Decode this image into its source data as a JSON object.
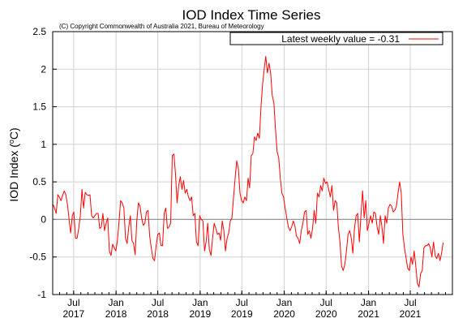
{
  "chart_data": {
    "type": "line",
    "title": "IOD Index Time Series",
    "subtitle": "(C) Copyright Commonwealth of Australia 2021, Bureau of Meteorology",
    "ylabel_main": "IOD Index (",
    "ylabel_sup": "o",
    "ylabel_end": "C)",
    "ylim": [
      -1,
      2.5
    ],
    "yticks": [
      "-1",
      "-0.5",
      "0",
      "0.5",
      "1",
      "1.5",
      "2",
      "2.5"
    ],
    "ytick_values": [
      -1,
      -0.5,
      0,
      0.5,
      1,
      1.5,
      2,
      2.5
    ],
    "xlim": [
      "2017-04-01",
      "2021-12-31"
    ],
    "xticks": [
      {
        "date": "2017-07-01",
        "line1": "Jul",
        "line2": "2017"
      },
      {
        "date": "2018-01-01",
        "line1": "Jan",
        "line2": "2018"
      },
      {
        "date": "2018-07-01",
        "line1": "Jul",
        "line2": "2018"
      },
      {
        "date": "2019-01-01",
        "line1": "Jan",
        "line2": "2019"
      },
      {
        "date": "2019-07-01",
        "line1": "Jul",
        "line2": "2019"
      },
      {
        "date": "2020-01-01",
        "line1": "Jan",
        "line2": "2020"
      },
      {
        "date": "2020-07-01",
        "line1": "Jul",
        "line2": "2020"
      },
      {
        "date": "2021-01-01",
        "line1": "Jan",
        "line2": "2021"
      },
      {
        "date": "2021-07-01",
        "line1": "Jul",
        "line2": "2021"
      }
    ],
    "grid": true,
    "zero_line": true,
    "legend_position": "top-right",
    "legend_label": "Latest weekly value = -0.31",
    "series": [
      {
        "color": "#ff0000",
        "points": [
          [
            "2017-04-02",
            0.2
          ],
          [
            "2017-04-09",
            0.15
          ],
          [
            "2017-04-16",
            0.08
          ],
          [
            "2017-04-23",
            0.33
          ],
          [
            "2017-04-30",
            0.3
          ],
          [
            "2017-05-07",
            0.25
          ],
          [
            "2017-05-14",
            0.32
          ],
          [
            "2017-05-21",
            0.38
          ],
          [
            "2017-05-28",
            0.33
          ],
          [
            "2017-06-04",
            0.2
          ],
          [
            "2017-06-11",
            0.0
          ],
          [
            "2017-06-18",
            -0.18
          ],
          [
            "2017-06-25",
            0.05
          ],
          [
            "2017-07-02",
            0.1
          ],
          [
            "2017-07-09",
            -0.25
          ],
          [
            "2017-07-16",
            -0.25
          ],
          [
            "2017-07-23",
            -0.12
          ],
          [
            "2017-07-30",
            0.05
          ],
          [
            "2017-08-06",
            0.4
          ],
          [
            "2017-08-13",
            0.15
          ],
          [
            "2017-08-20",
            0.36
          ],
          [
            "2017-08-27",
            0.33
          ],
          [
            "2017-09-03",
            0.32
          ],
          [
            "2017-09-10",
            0.33
          ],
          [
            "2017-09-17",
            0.05
          ],
          [
            "2017-09-24",
            0.02
          ],
          [
            "2017-10-01",
            0.05
          ],
          [
            "2017-10-08",
            0.08
          ],
          [
            "2017-10-15",
            0.08
          ],
          [
            "2017-10-22",
            -0.12
          ],
          [
            "2017-10-29",
            -0.1
          ],
          [
            "2017-11-05",
            0.08
          ],
          [
            "2017-11-12",
            -0.15
          ],
          [
            "2017-11-19",
            -0.05
          ],
          [
            "2017-11-26",
            0.02
          ],
          [
            "2017-12-03",
            -0.42
          ],
          [
            "2017-12-10",
            -0.48
          ],
          [
            "2017-12-17",
            -0.33
          ],
          [
            "2017-12-24",
            -0.38
          ],
          [
            "2017-12-31",
            -0.42
          ],
          [
            "2018-01-07",
            -0.28
          ],
          [
            "2018-01-14",
            -0.03
          ],
          [
            "2018-01-21",
            0.25
          ],
          [
            "2018-01-28",
            0.22
          ],
          [
            "2018-02-04",
            0.15
          ],
          [
            "2018-02-11",
            -0.25
          ],
          [
            "2018-02-18",
            -0.32
          ],
          [
            "2018-02-25",
            -0.1
          ],
          [
            "2018-03-04",
            0.05
          ],
          [
            "2018-03-11",
            -0.28
          ],
          [
            "2018-03-18",
            -0.32
          ],
          [
            "2018-03-25",
            -0.47
          ],
          [
            "2018-04-01",
            -0.02
          ],
          [
            "2018-04-08",
            0.22
          ],
          [
            "2018-04-15",
            0.18
          ],
          [
            "2018-04-22",
            0.02
          ],
          [
            "2018-04-29",
            -0.08
          ],
          [
            "2018-05-06",
            -0.05
          ],
          [
            "2018-05-13",
            0.1
          ],
          [
            "2018-05-20",
            0.12
          ],
          [
            "2018-05-27",
            -0.22
          ],
          [
            "2018-06-03",
            -0.38
          ],
          [
            "2018-06-10",
            -0.52
          ],
          [
            "2018-06-17",
            -0.55
          ],
          [
            "2018-06-24",
            -0.35
          ],
          [
            "2018-07-01",
            -0.2
          ],
          [
            "2018-07-08",
            -0.18
          ],
          [
            "2018-07-15",
            -0.35
          ],
          [
            "2018-07-22",
            -0.35
          ],
          [
            "2018-07-29",
            0.08
          ],
          [
            "2018-08-05",
            0.15
          ],
          [
            "2018-08-12",
            -0.12
          ],
          [
            "2018-08-19",
            -0.1
          ],
          [
            "2018-08-26",
            -0.05
          ],
          [
            "2018-09-02",
            0.85
          ],
          [
            "2018-09-09",
            0.87
          ],
          [
            "2018-09-16",
            0.6
          ],
          [
            "2018-09-23",
            0.22
          ],
          [
            "2018-09-30",
            0.45
          ],
          [
            "2018-10-07",
            0.57
          ],
          [
            "2018-10-14",
            0.4
          ],
          [
            "2018-10-21",
            0.52
          ],
          [
            "2018-10-28",
            0.35
          ],
          [
            "2018-11-04",
            0.4
          ],
          [
            "2018-11-11",
            0.3
          ],
          [
            "2018-11-18",
            0.25
          ],
          [
            "2018-11-25",
            0.3
          ],
          [
            "2018-12-02",
            0.05
          ],
          [
            "2018-12-09",
            0.08
          ],
          [
            "2018-12-16",
            -0.3
          ],
          [
            "2018-12-23",
            -0.35
          ],
          [
            "2018-12-30",
            0.05
          ],
          [
            "2019-01-06",
            0.0
          ],
          [
            "2019-01-13",
            -0.02
          ],
          [
            "2019-01-20",
            -0.42
          ],
          [
            "2019-01-27",
            -0.3
          ],
          [
            "2019-02-03",
            -0.05
          ],
          [
            "2019-02-10",
            -0.4
          ],
          [
            "2019-02-17",
            -0.48
          ],
          [
            "2019-02-24",
            -0.25
          ],
          [
            "2019-03-03",
            -0.05
          ],
          [
            "2019-03-10",
            -0.12
          ],
          [
            "2019-03-17",
            -0.2
          ],
          [
            "2019-03-24",
            -0.18
          ],
          [
            "2019-03-31",
            -0.28
          ],
          [
            "2019-04-07",
            -0.02
          ],
          [
            "2019-04-14",
            -0.15
          ],
          [
            "2019-04-21",
            -0.42
          ],
          [
            "2019-04-28",
            -0.25
          ],
          [
            "2019-05-05",
            -0.18
          ],
          [
            "2019-05-12",
            -0.02
          ],
          [
            "2019-05-19",
            0.02
          ],
          [
            "2019-05-26",
            0.3
          ],
          [
            "2019-06-02",
            0.55
          ],
          [
            "2019-06-09",
            0.78
          ],
          [
            "2019-06-16",
            0.68
          ],
          [
            "2019-06-23",
            0.35
          ],
          [
            "2019-06-30",
            0.25
          ],
          [
            "2019-07-07",
            0.22
          ],
          [
            "2019-07-14",
            0.3
          ],
          [
            "2019-07-21",
            0.25
          ],
          [
            "2019-07-28",
            0.55
          ],
          [
            "2019-08-04",
            0.42
          ],
          [
            "2019-08-11",
            0.85
          ],
          [
            "2019-08-18",
            0.88
          ],
          [
            "2019-08-25",
            1.1
          ],
          [
            "2019-09-01",
            1.05
          ],
          [
            "2019-09-08",
            1.15
          ],
          [
            "2019-09-15",
            1.08
          ],
          [
            "2019-09-22",
            1.5
          ],
          [
            "2019-09-29",
            1.8
          ],
          [
            "2019-10-06",
            2.0
          ],
          [
            "2019-10-13",
            2.17
          ],
          [
            "2019-10-20",
            1.95
          ],
          [
            "2019-10-27",
            2.08
          ],
          [
            "2019-11-03",
            1.95
          ],
          [
            "2019-11-10",
            1.65
          ],
          [
            "2019-11-17",
            1.55
          ],
          [
            "2019-11-24",
            1.2
          ],
          [
            "2019-12-01",
            0.9
          ],
          [
            "2019-12-08",
            0.82
          ],
          [
            "2019-12-15",
            0.55
          ],
          [
            "2019-12-22",
            0.35
          ],
          [
            "2019-12-29",
            0.3
          ],
          [
            "2020-01-05",
            0.15
          ],
          [
            "2020-01-12",
            0.02
          ],
          [
            "2020-01-19",
            -0.1
          ],
          [
            "2020-01-26",
            -0.15
          ],
          [
            "2020-02-02",
            -0.1
          ],
          [
            "2020-02-09",
            -0.02
          ],
          [
            "2020-02-16",
            -0.08
          ],
          [
            "2020-02-23",
            -0.22
          ],
          [
            "2020-03-01",
            -0.25
          ],
          [
            "2020-03-08",
            -0.32
          ],
          [
            "2020-03-15",
            -0.15
          ],
          [
            "2020-03-22",
            -0.05
          ],
          [
            "2020-03-29",
            0.1
          ],
          [
            "2020-04-05",
            0.12
          ],
          [
            "2020-04-12",
            -0.2
          ],
          [
            "2020-04-19",
            -0.15
          ],
          [
            "2020-04-26",
            -0.25
          ],
          [
            "2020-05-03",
            -0.12
          ],
          [
            "2020-05-10",
            0.12
          ],
          [
            "2020-05-17",
            -0.05
          ],
          [
            "2020-05-24",
            0.35
          ],
          [
            "2020-05-31",
            0.3
          ],
          [
            "2020-06-07",
            0.45
          ],
          [
            "2020-06-14",
            0.38
          ],
          [
            "2020-06-21",
            0.55
          ],
          [
            "2020-06-28",
            0.48
          ],
          [
            "2020-07-05",
            0.5
          ],
          [
            "2020-07-12",
            0.4
          ],
          [
            "2020-07-19",
            0.3
          ],
          [
            "2020-07-26",
            0.45
          ],
          [
            "2020-08-02",
            0.12
          ],
          [
            "2020-08-09",
            0.25
          ],
          [
            "2020-08-16",
            0.22
          ],
          [
            "2020-08-23",
            -0.1
          ],
          [
            "2020-08-30",
            -0.3
          ],
          [
            "2020-09-06",
            -0.62
          ],
          [
            "2020-09-13",
            -0.68
          ],
          [
            "2020-09-20",
            -0.6
          ],
          [
            "2020-09-27",
            -0.42
          ],
          [
            "2020-10-04",
            -0.2
          ],
          [
            "2020-10-11",
            -0.15
          ],
          [
            "2020-10-18",
            -0.25
          ],
          [
            "2020-10-25",
            -0.45
          ],
          [
            "2020-11-01",
            -0.12
          ],
          [
            "2020-11-08",
            0.05
          ],
          [
            "2020-11-15",
            0.08
          ],
          [
            "2020-11-22",
            -0.3
          ],
          [
            "2020-11-29",
            0.05
          ],
          [
            "2020-12-06",
            0.38
          ],
          [
            "2020-12-13",
            0.02
          ],
          [
            "2020-12-20",
            0.25
          ],
          [
            "2020-12-27",
            -0.15
          ],
          [
            "2021-01-03",
            -0.05
          ],
          [
            "2021-01-10",
            0.05
          ],
          [
            "2021-01-17",
            -0.05
          ],
          [
            "2021-01-24",
            0.1
          ],
          [
            "2021-01-31",
            0.08
          ],
          [
            "2021-02-07",
            -0.1
          ],
          [
            "2021-02-14",
            -0.2
          ],
          [
            "2021-02-21",
            0.05
          ],
          [
            "2021-02-28",
            -0.1
          ],
          [
            "2021-03-07",
            -0.32
          ],
          [
            "2021-03-14",
            0.05
          ],
          [
            "2021-03-21",
            -0.05
          ],
          [
            "2021-03-28",
            0.15
          ],
          [
            "2021-04-04",
            0.2
          ],
          [
            "2021-04-11",
            0.18
          ],
          [
            "2021-04-18",
            0.1
          ],
          [
            "2021-04-25",
            0.12
          ],
          [
            "2021-05-02",
            0.18
          ],
          [
            "2021-05-09",
            0.35
          ],
          [
            "2021-05-16",
            0.5
          ],
          [
            "2021-05-23",
            0.35
          ],
          [
            "2021-05-30",
            -0.2
          ],
          [
            "2021-06-06",
            -0.38
          ],
          [
            "2021-06-13",
            -0.52
          ],
          [
            "2021-06-20",
            -0.65
          ],
          [
            "2021-06-27",
            -0.68
          ],
          [
            "2021-07-04",
            -0.5
          ],
          [
            "2021-07-11",
            -0.6
          ],
          [
            "2021-07-18",
            -0.42
          ],
          [
            "2021-07-25",
            -0.62
          ],
          [
            "2021-08-01",
            -0.85
          ],
          [
            "2021-08-08",
            -0.9
          ],
          [
            "2021-08-15",
            -0.72
          ],
          [
            "2021-08-22",
            -0.68
          ],
          [
            "2021-08-29",
            -0.38
          ],
          [
            "2021-09-05",
            -0.35
          ],
          [
            "2021-09-12",
            -0.35
          ],
          [
            "2021-09-19",
            -0.32
          ],
          [
            "2021-09-26",
            -0.38
          ],
          [
            "2021-10-03",
            -0.5
          ],
          [
            "2021-10-10",
            -0.3
          ],
          [
            "2021-10-17",
            -0.48
          ],
          [
            "2021-10-24",
            -0.52
          ],
          [
            "2021-10-31",
            -0.45
          ],
          [
            "2021-11-07",
            -0.55
          ],
          [
            "2021-11-14",
            -0.45
          ],
          [
            "2021-11-21",
            -0.31
          ]
        ]
      }
    ]
  }
}
